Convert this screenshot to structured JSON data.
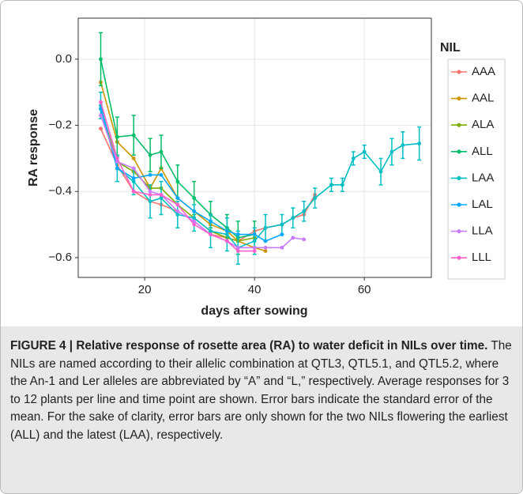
{
  "chart_data": {
    "type": "line",
    "xlabel": "days after sowing",
    "ylabel": "RA response",
    "legend_title": "NIL",
    "x": [
      12,
      15,
      18,
      21,
      23,
      26,
      29,
      32,
      35,
      37,
      40,
      42,
      45,
      47,
      49,
      51,
      54,
      56,
      58,
      60,
      63,
      65,
      67,
      70
    ],
    "xlim": [
      7.9,
      72.2
    ],
    "xticks": [
      20,
      40,
      60
    ],
    "ylim": [
      -0.66,
      0.124
    ],
    "yticks": [
      {
        "value": 0,
        "label": "0.0"
      },
      {
        "value": -0.2,
        "label": "−0.2"
      },
      {
        "value": -0.4,
        "label": "−0.4"
      },
      {
        "value": -0.6,
        "label": "−0.6"
      }
    ],
    "grid": true,
    "legend": "right",
    "series": [
      {
        "name": "AAA",
        "color": "#F8766D",
        "values": [
          -0.21,
          -0.32,
          -0.4,
          -0.43,
          -0.44,
          -0.46,
          -0.49,
          -0.53,
          -0.54,
          -0.55,
          -0.52,
          -0.51,
          -0.5,
          -0.48,
          -0.47,
          -0.41,
          null,
          null,
          null,
          null,
          null,
          null,
          null,
          null
        ]
      },
      {
        "name": "AAL",
        "color": "#CD9600",
        "values": [
          -0.07,
          -0.25,
          -0.3,
          -0.39,
          -0.33,
          -0.42,
          -0.46,
          -0.5,
          -0.52,
          -0.55,
          -0.57,
          -0.58,
          null,
          null,
          null,
          null,
          null,
          null,
          null,
          null,
          null,
          null,
          null,
          null
        ]
      },
      {
        "name": "ALA",
        "color": "#7CAE00",
        "values": [
          -0.15,
          -0.31,
          -0.34,
          -0.39,
          -0.39,
          -0.44,
          -0.48,
          -0.52,
          -0.54,
          -0.55,
          -0.54,
          null,
          null,
          null,
          null,
          null,
          null,
          null,
          null,
          null,
          null,
          null,
          null,
          null
        ]
      },
      {
        "name": "ALL",
        "color": "#00BE67",
        "values": [
          0.0,
          -0.235,
          -0.23,
          -0.29,
          -0.28,
          -0.37,
          -0.42,
          -0.47,
          -0.51,
          -0.54,
          -0.53,
          null,
          null,
          null,
          null,
          null,
          null,
          null,
          null,
          null,
          null,
          null,
          null,
          null
        ],
        "errors": [
          0.08,
          0.06,
          0.06,
          0.05,
          0.05,
          0.05,
          0.05,
          0.04,
          0.04,
          0.05,
          0.04,
          null,
          null,
          null,
          null,
          null,
          null,
          null,
          null,
          null,
          null,
          null,
          null,
          null
        ]
      },
      {
        "name": "LAA",
        "color": "#00BFC4",
        "values": [
          -0.14,
          -0.33,
          -0.37,
          -0.43,
          -0.42,
          -0.47,
          -0.48,
          -0.52,
          -0.53,
          -0.57,
          -0.55,
          -0.51,
          -0.5,
          -0.48,
          -0.46,
          -0.42,
          -0.38,
          -0.38,
          -0.3,
          -0.28,
          -0.34,
          -0.28,
          -0.26,
          -0.255
        ],
        "errors": [
          0.04,
          0.04,
          0.04,
          0.05,
          0.05,
          0.04,
          0.04,
          0.05,
          0.05,
          0.05,
          0.04,
          0.04,
          0.03,
          0.03,
          0.03,
          0.03,
          0.02,
          0.02,
          0.02,
          0.02,
          0.04,
          0.04,
          0.04,
          0.05
        ]
      },
      {
        "name": "LAL",
        "color": "#00A9FF",
        "values": [
          -0.15,
          -0.33,
          -0.36,
          -0.35,
          -0.35,
          -0.42,
          -0.46,
          -0.49,
          -0.52,
          -0.53,
          -0.53,
          -0.55,
          -0.53,
          null,
          null,
          null,
          null,
          null,
          null,
          null,
          null,
          null,
          null,
          null
        ]
      },
      {
        "name": "LLA",
        "color": "#C77CFF",
        "values": [
          -0.17,
          -0.31,
          -0.33,
          -0.4,
          -0.41,
          -0.46,
          -0.49,
          -0.53,
          -0.55,
          -0.57,
          -0.57,
          -0.57,
          -0.57,
          -0.54,
          -0.545,
          null,
          null,
          null,
          null,
          null,
          null,
          null,
          null,
          null
        ]
      },
      {
        "name": "LLL",
        "color": "#FF61CC",
        "values": [
          -0.13,
          -0.3,
          -0.4,
          -0.41,
          -0.41,
          -0.44,
          -0.5,
          -0.53,
          -0.55,
          -0.58,
          -0.58,
          null,
          null,
          null,
          null,
          null,
          null,
          null,
          null,
          null,
          null,
          null,
          null,
          null
        ]
      }
    ]
  },
  "caption": {
    "title": "FIGURE 4 | Relative response of rosette area (RA) to water deficit in NILs over time.",
    "text": "The NILs are named according to their allelic combination at QTL3, QTL5.1, and QTL5.2, where the An-1 and Ler alleles are abbreviated by “A” and “L,” respectively. Average responses for 3 to 12 plants per line and time point are shown. Error bars indicate the standard error of the mean. For the sake of clarity, error bars are only shown for the two NILs flowering the earliest (ALL) and the latest (LAA), respectively."
  }
}
